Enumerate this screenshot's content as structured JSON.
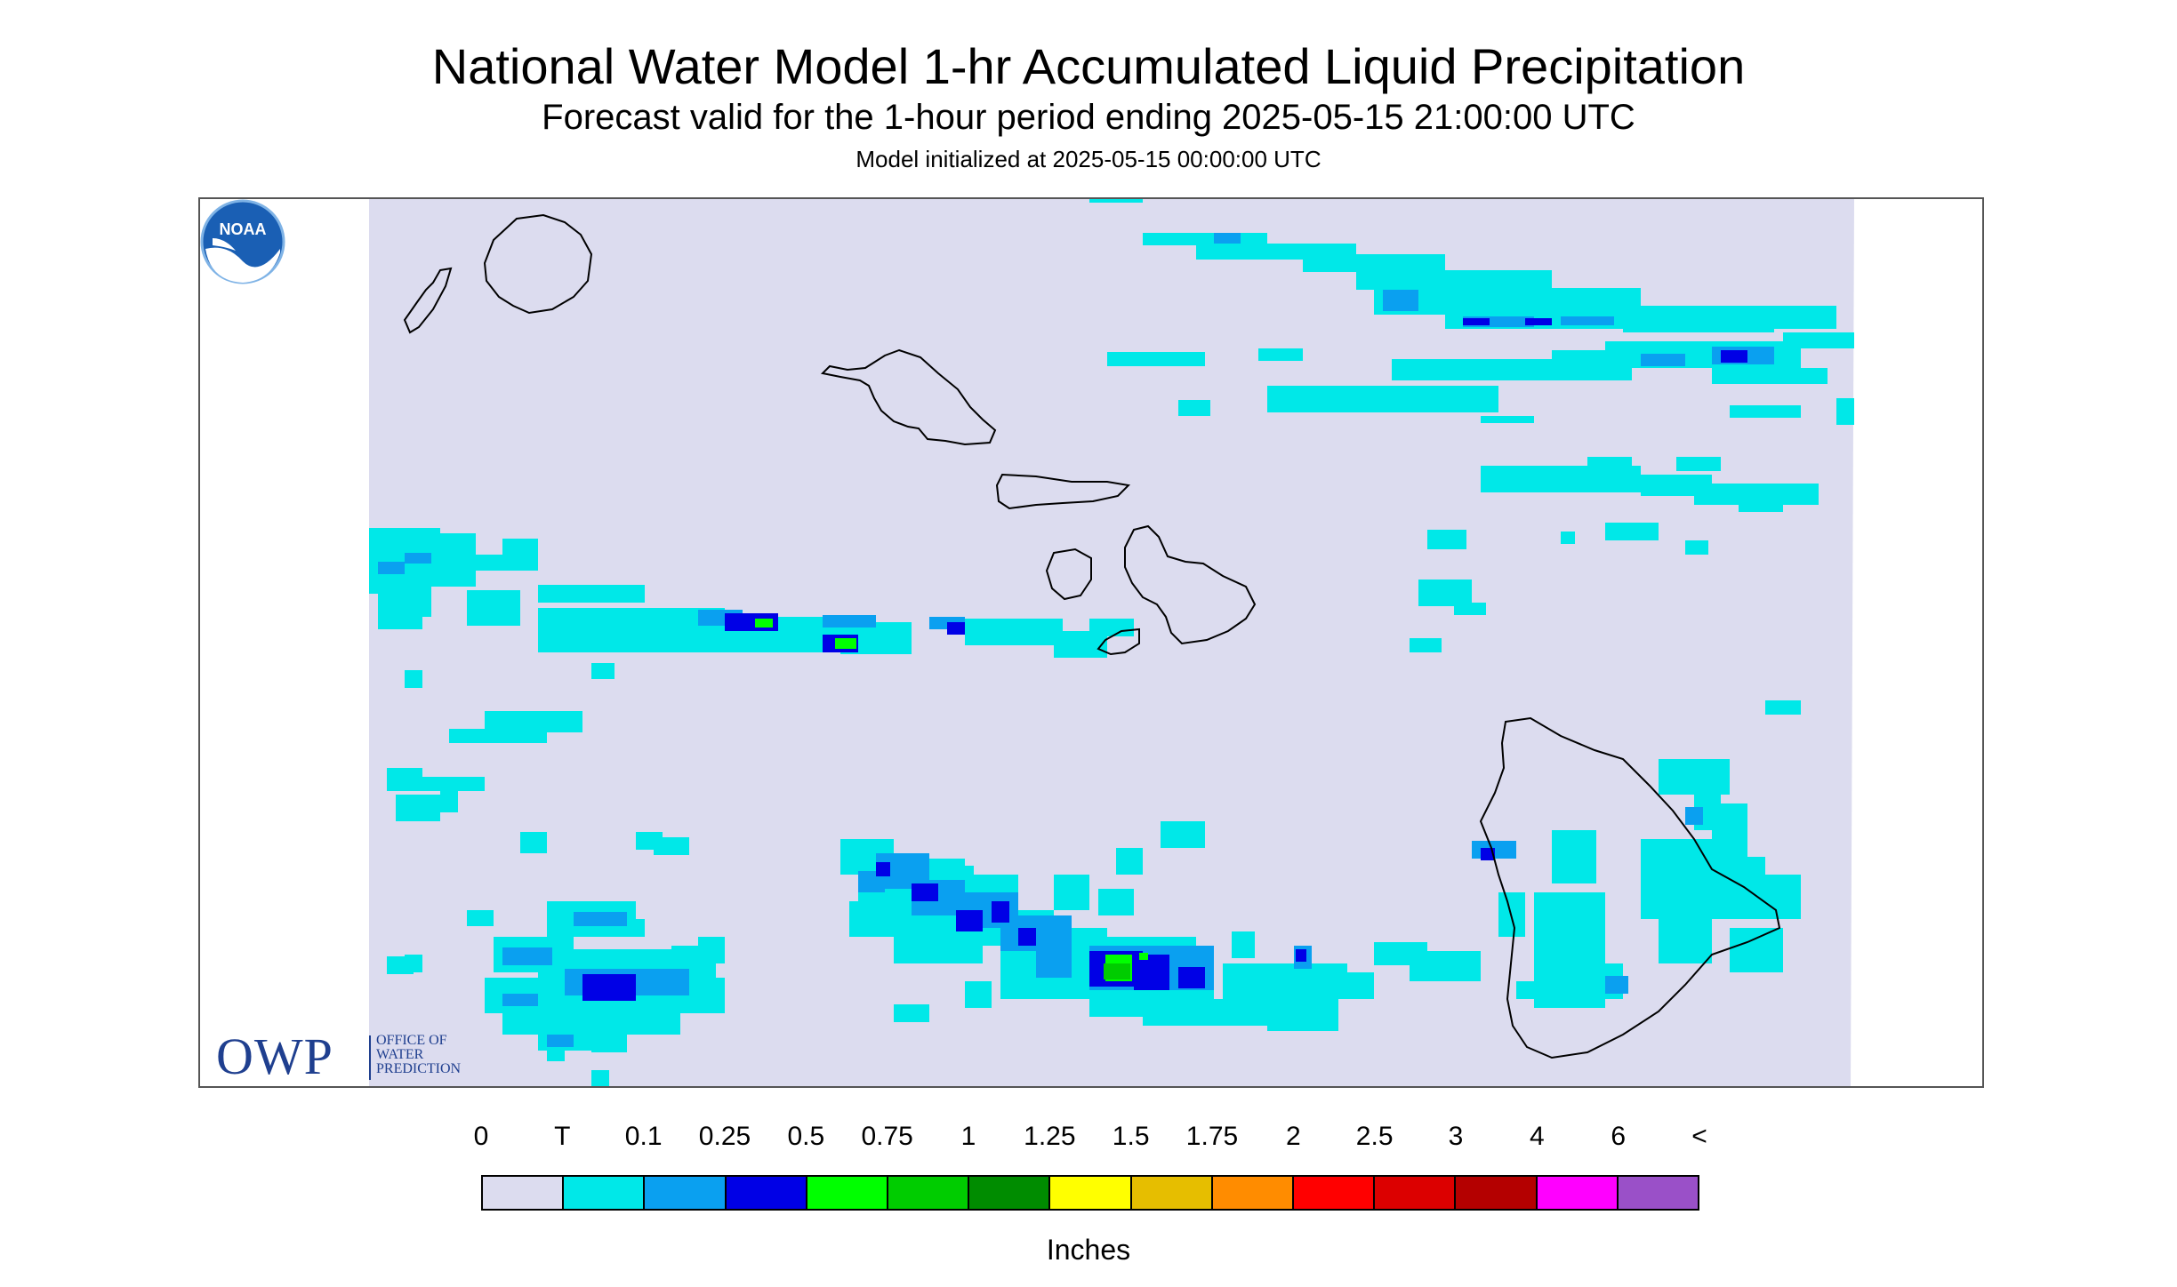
{
  "header": {
    "title": "National Water Model 1-hr Accumulated Liquid Precipitation",
    "subtitle": "Forecast valid for the 1-hour period ending 2025-05-15 21:00:00 UTC",
    "init": "Model initialized at 2025-05-15 00:00:00 UTC"
  },
  "legend": {
    "labels": [
      "0",
      "T",
      "0.1",
      "0.25",
      "0.5",
      "0.75",
      "1",
      "1.25",
      "1.5",
      "1.75",
      "2",
      "2.5",
      "3",
      "4",
      "6",
      "<"
    ],
    "colors": [
      "#dcdcef",
      "#00e8e8",
      "#0aa0f0",
      "#0000e6",
      "#00ff00",
      "#00cc00",
      "#008c00",
      "#ffff00",
      "#e6be00",
      "#ff8c00",
      "#ff0000",
      "#dc0000",
      "#b40000",
      "#ff00ff",
      "#9a50c8"
    ],
    "units": "Inches"
  },
  "logos": {
    "owp_mark": "OWP",
    "owp_line1": "OFFICE OF",
    "owp_line2": "WATER",
    "owp_line3": "PREDICTION",
    "noaa": "NOAA"
  },
  "map": {
    "background_color": "#dcdcef",
    "icon": "hawaii-precip-map"
  }
}
